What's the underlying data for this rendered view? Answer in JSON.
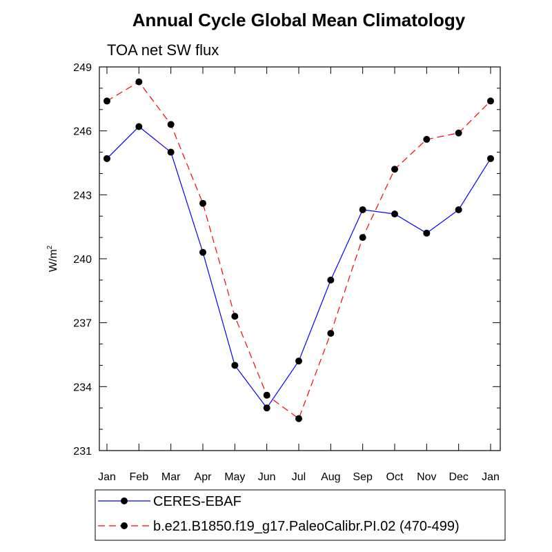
{
  "chart_data": {
    "type": "line",
    "title": "Annual Cycle Global Mean Climatology",
    "subtitle": "TOA net SW flux",
    "xlabel": "",
    "ylabel_base": "W/m",
    "ylabel_sup": "2",
    "categories": [
      "Jan",
      "Feb",
      "Mar",
      "Apr",
      "May",
      "Jun",
      "Jul",
      "Aug",
      "Sep",
      "Oct",
      "Nov",
      "Dec",
      "Jan"
    ],
    "ylim": [
      231,
      249
    ],
    "yticks": [
      231,
      234,
      237,
      240,
      243,
      246,
      249
    ],
    "grid": false,
    "legend_position": "bottom",
    "series": [
      {
        "name": "CERES-EBAF",
        "color": "#0000ff",
        "dash": "solid",
        "values": [
          244.7,
          246.2,
          245.0,
          240.3,
          235.0,
          233.0,
          235.2,
          239.0,
          242.3,
          242.1,
          241.2,
          242.3,
          244.7
        ]
      },
      {
        "name": "b.e21.B1850.f19_g17.PaleoCalibr.PI.02 (470-499)",
        "color": "#ff0000",
        "dash": "dashed",
        "values": [
          247.4,
          248.3,
          246.3,
          242.6,
          237.3,
          233.6,
          232.5,
          236.5,
          241.0,
          244.2,
          245.6,
          245.9,
          247.4
        ]
      }
    ]
  }
}
